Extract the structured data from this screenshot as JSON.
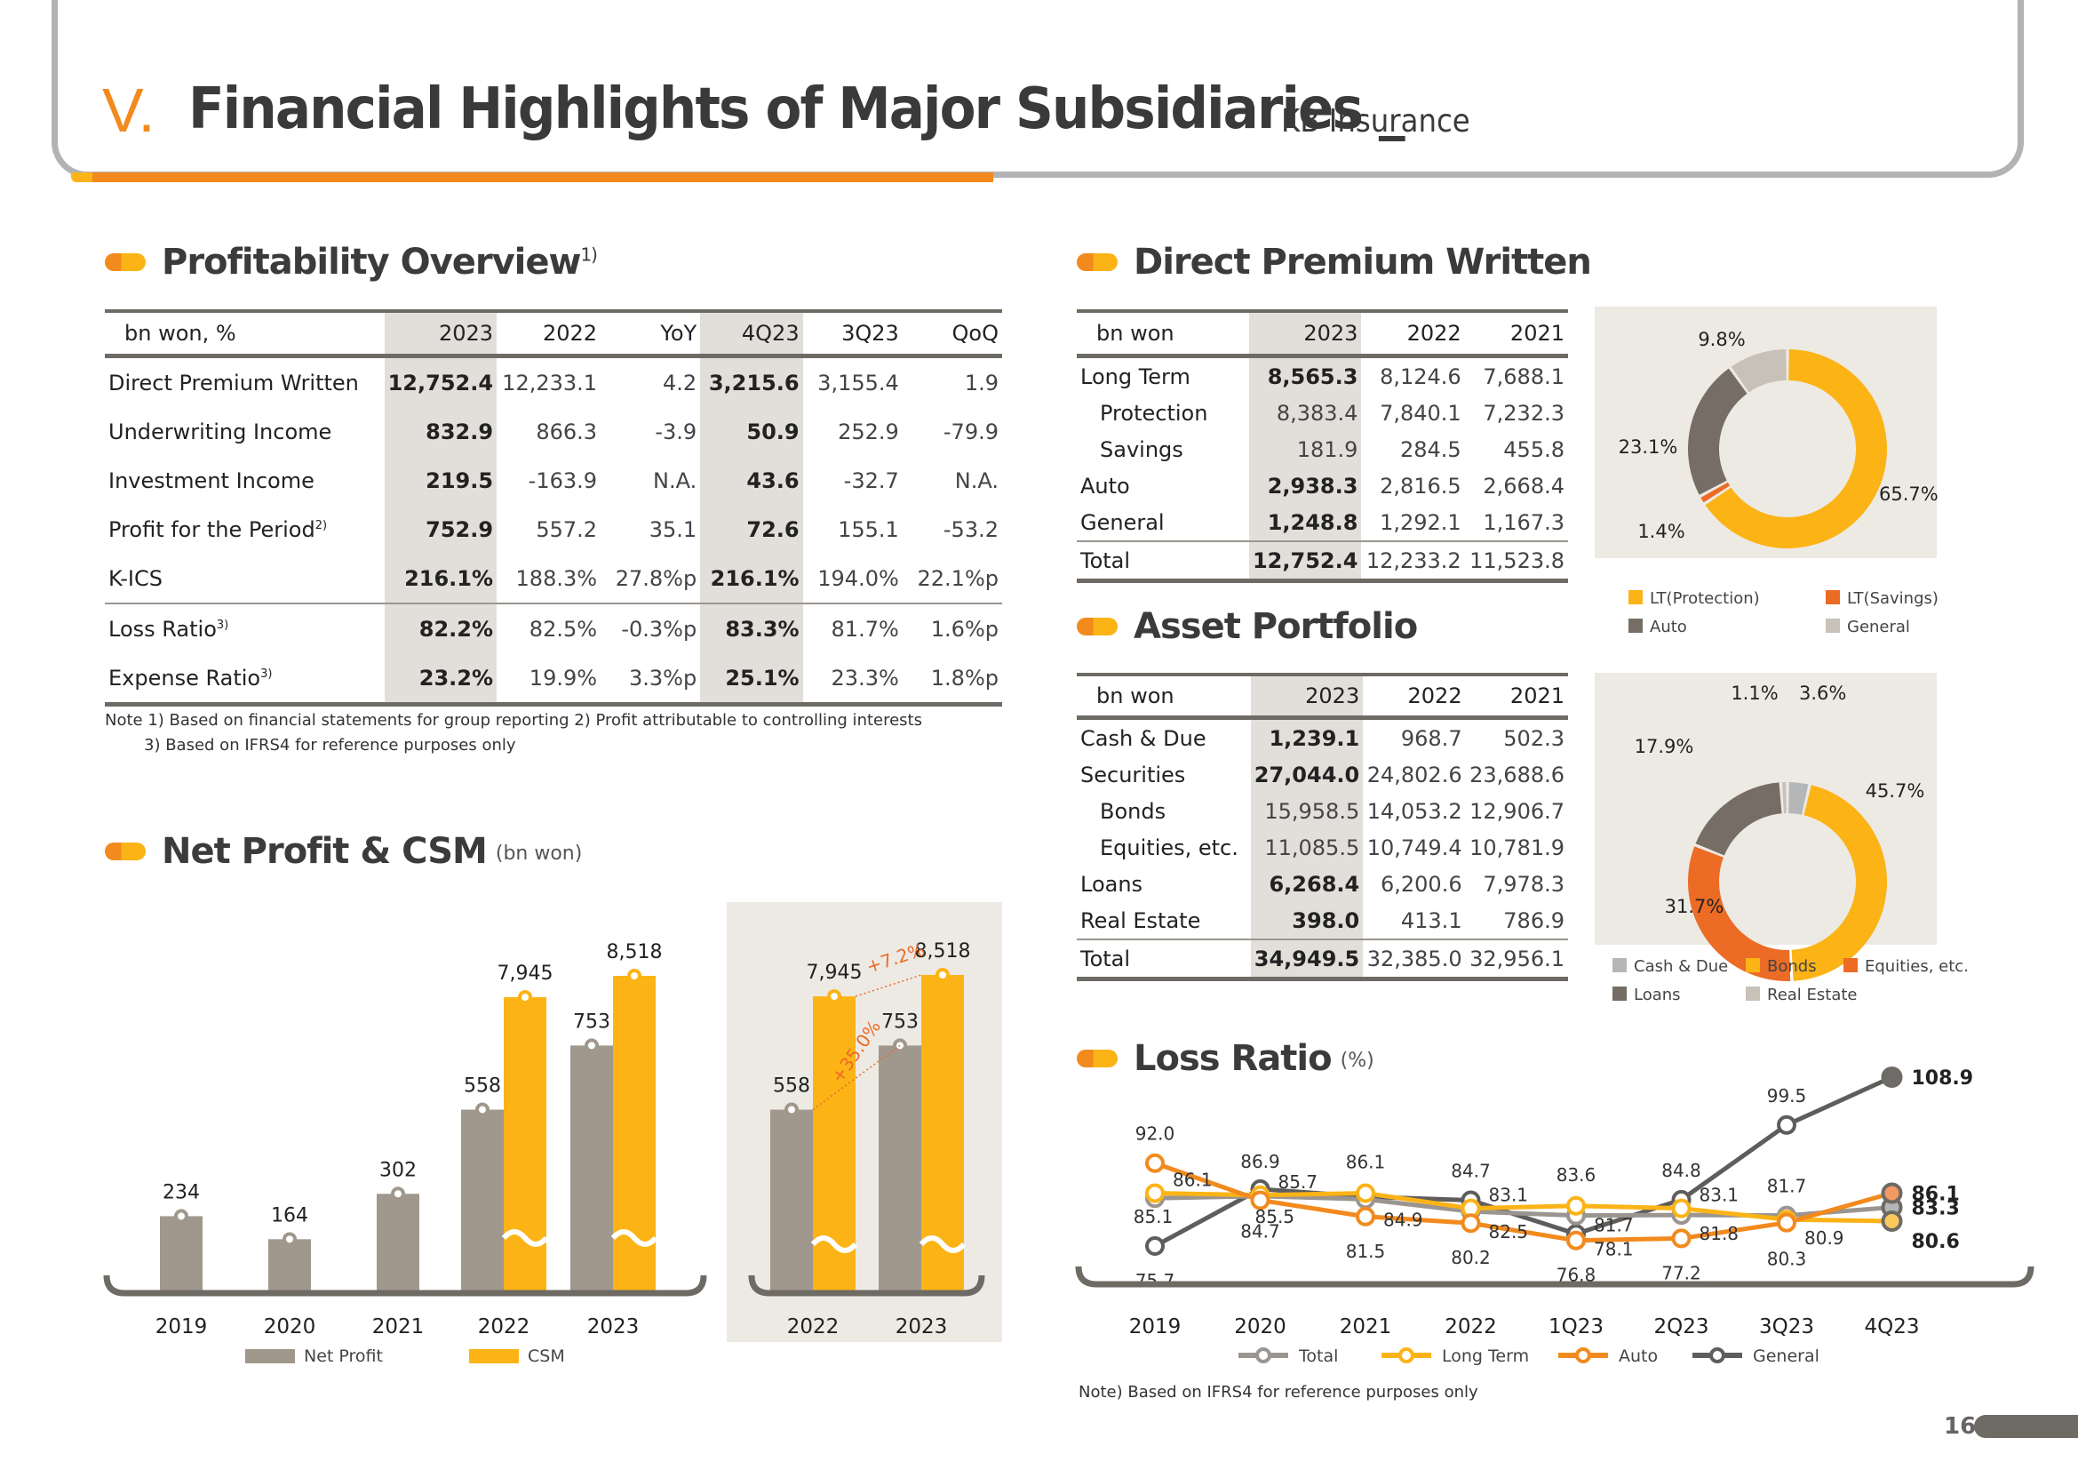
{
  "header": {
    "section_number": "V.",
    "title": "Financial Highlights of Major Subsidiaries",
    "separator": "_",
    "subtitle": "KB Insurance"
  },
  "profitability": {
    "title": "Profitability Overview",
    "title_note": "1)",
    "columns": [
      "bn won, %",
      "2023",
      "2022",
      "YoY",
      "4Q23",
      "3Q23",
      "QoQ"
    ],
    "rows": [
      {
        "label": "Direct Premium Written",
        "note": "",
        "values": [
          "12,752.4",
          "12,233.1",
          "4.2",
          "3,215.6",
          "3,155.4",
          "1.9"
        ]
      },
      {
        "label": "Underwriting Income",
        "note": "",
        "values": [
          "832.9",
          "866.3",
          "-3.9",
          "50.9",
          "252.9",
          "-79.9"
        ]
      },
      {
        "label": "Investment Income",
        "note": "",
        "values": [
          "219.5",
          "-163.9",
          "N.A.",
          "43.6",
          "-32.7",
          "N.A."
        ]
      },
      {
        "label": "Profit for the Period",
        "note": "2)",
        "values": [
          "752.9",
          "557.2",
          "35.1",
          "72.6",
          "155.1",
          "-53.2"
        ]
      },
      {
        "label": "K-ICS",
        "note": "",
        "values": [
          "216.1%",
          "188.3%",
          "27.8%p",
          "216.1%",
          "194.0%",
          "22.1%p"
        ]
      },
      {
        "label": "Loss Ratio",
        "note": "3)",
        "values": [
          "82.2%",
          "82.5%",
          "-0.3%p",
          "83.3%",
          "81.7%",
          "1.6%p"
        ]
      },
      {
        "label": "Expense Ratio",
        "note": "3)",
        "values": [
          "23.2%",
          "19.9%",
          "3.3%p",
          "25.1%",
          "23.3%",
          "1.8%p"
        ]
      }
    ],
    "notes": [
      "Note 1) Based on financial statements for group reporting   2) Profit attributable to controlling interests",
      "3) Based on IFRS4 for reference purposes only"
    ]
  },
  "direct_premium": {
    "title": "Direct Premium Written",
    "columns": [
      "bn won",
      "2023",
      "2022",
      "2021"
    ],
    "rows": [
      {
        "label": "Long Term",
        "indent": false,
        "values": [
          "8,565.3",
          "8,124.6",
          "7,688.1"
        ]
      },
      {
        "label": "Protection",
        "indent": true,
        "values": [
          "8,383.4",
          "7,840.1",
          "7,232.3"
        ]
      },
      {
        "label": "Savings",
        "indent": true,
        "values": [
          "181.9",
          "284.5",
          "455.8"
        ]
      },
      {
        "label": "Auto",
        "indent": false,
        "values": [
          "2,938.3",
          "2,816.5",
          "2,668.4"
        ]
      },
      {
        "label": "General",
        "indent": false,
        "values": [
          "1,248.8",
          "1,292.1",
          "1,167.3"
        ]
      },
      {
        "label": "Total",
        "indent": false,
        "values": [
          "12,752.4",
          "12,233.2",
          "11,523.8"
        ]
      }
    ]
  },
  "asset_portfolio": {
    "title": "Asset Portfolio",
    "columns": [
      "bn won",
      "2023",
      "2022",
      "2021"
    ],
    "rows": [
      {
        "label": "Cash & Due",
        "indent": false,
        "values": [
          "1,239.1",
          "968.7",
          "502.3"
        ]
      },
      {
        "label": "Securities",
        "indent": false,
        "values": [
          "27,044.0",
          "24,802.6",
          "23,688.6"
        ]
      },
      {
        "label": "Bonds",
        "indent": true,
        "values": [
          "15,958.5",
          "14,053.2",
          "12,906.7"
        ]
      },
      {
        "label": "Equities, etc.",
        "indent": true,
        "values": [
          "11,085.5",
          "10,749.4",
          "10,781.9"
        ]
      },
      {
        "label": "Loans",
        "indent": false,
        "values": [
          "6,268.4",
          "6,200.6",
          "7,978.3"
        ]
      },
      {
        "label": "Real Estate",
        "indent": false,
        "values": [
          "398.0",
          "413.1",
          "786.9"
        ]
      },
      {
        "label": "Total",
        "indent": false,
        "values": [
          "34,949.5",
          "32,385.0",
          "32,956.1"
        ]
      }
    ]
  },
  "net_profit": {
    "title": "Net Profit & CSM",
    "unit": "(bn won)"
  },
  "loss_ratio": {
    "title": "Loss Ratio",
    "unit": "(%)",
    "note": "Note) Based on IFRS4 for reference purposes only"
  },
  "page_number": "16",
  "chart_data": [
    {
      "id": "premium_mix",
      "type": "pie",
      "donut": true,
      "title": "Direct Premium Written mix (2023)",
      "labels": [
        "LT(Protection)",
        "LT(Savings)",
        "Auto",
        "General"
      ],
      "values": [
        65.7,
        1.4,
        23.1,
        9.8
      ],
      "value_labels": [
        "65.7%",
        "1.4%",
        "23.1%",
        "9.8%"
      ],
      "colors": [
        "#fbb316",
        "#ec6b25",
        "#766d65",
        "#c8c1b7"
      ],
      "legend": "bottom"
    },
    {
      "id": "asset_mix",
      "type": "pie",
      "donut": true,
      "title": "Asset Portfolio mix (2023)",
      "labels": [
        "Cash & Due",
        "Bonds",
        "Equities, etc.",
        "Loans",
        "Real Estate"
      ],
      "values": [
        3.6,
        45.7,
        31.7,
        17.9,
        1.1
      ],
      "value_labels": [
        "3.6%",
        "45.7%",
        "31.7%",
        "17.9%",
        "1.1%"
      ],
      "colors": [
        "#b5b6b8",
        "#fbb316",
        "#ec6b25",
        "#766d65",
        "#c8c1b7"
      ],
      "legend_order": [
        "Cash & Due",
        "Bonds",
        "Equities, etc.",
        "Loans",
        "Real Estate"
      ],
      "legend": "bottom"
    },
    {
      "id": "net_profit_csm",
      "type": "bar",
      "title": "Net Profit & CSM",
      "ylabel": "bn won",
      "categories": [
        "2019",
        "2020",
        "2021",
        "2022",
        "2023"
      ],
      "series": [
        {
          "name": "Net Profit",
          "color": "#a0978d",
          "values": [
            234,
            164,
            302,
            558,
            753
          ],
          "labels": [
            "234",
            "164",
            "302",
            "558",
            "753"
          ]
        },
        {
          "name": "CSM",
          "color": "#fbb316",
          "values": [
            null,
            null,
            null,
            7945,
            8518
          ],
          "labels": [
            "",
            "",
            "",
            "7,945",
            "8,518"
          ],
          "axis_break": true
        }
      ],
      "legend": "bottom"
    },
    {
      "id": "net_profit_csm_yoy",
      "type": "bar",
      "categories": [
        "2022",
        "2023"
      ],
      "series": [
        {
          "name": "Net Profit",
          "color": "#a0978d",
          "values": [
            558,
            753
          ],
          "labels": [
            "558",
            "753"
          ]
        },
        {
          "name": "CSM",
          "color": "#fbb316",
          "values": [
            7945,
            8518
          ],
          "labels": [
            "7,945",
            "8,518"
          ],
          "axis_break": true
        }
      ],
      "annotations": [
        {
          "series": "Net Profit",
          "text": "+35.0%"
        },
        {
          "series": "CSM",
          "text": "+7.2%"
        }
      ]
    },
    {
      "id": "loss_ratio",
      "type": "line",
      "title": "Loss Ratio (%)",
      "categories": [
        "2019",
        "2020",
        "2021",
        "2022",
        "1Q23",
        "2Q23",
        "3Q23",
        "4Q23"
      ],
      "series": [
        {
          "name": "Total",
          "color": "#9a9590",
          "values": [
            85.1,
            85.5,
            84.9,
            82.5,
            81.7,
            81.8,
            81.7,
            83.3
          ]
        },
        {
          "name": "Long Term",
          "color": "#fbb316",
          "values": [
            86.1,
            85.7,
            86.1,
            83.1,
            83.6,
            83.1,
            80.9,
            80.6
          ]
        },
        {
          "name": "Auto",
          "color": "#f28a1e",
          "values": [
            92.0,
            84.7,
            81.5,
            80.2,
            76.8,
            77.2,
            80.3,
            86.1
          ]
        },
        {
          "name": "General",
          "color": "#5f5d5c",
          "values": [
            75.7,
            86.9,
            85.4,
            84.7,
            78.1,
            84.8,
            99.5,
            108.9
          ]
        }
      ],
      "legend": "bottom",
      "ylim": [
        70,
        112
      ]
    }
  ]
}
